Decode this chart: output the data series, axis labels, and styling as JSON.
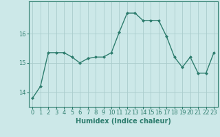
{
  "x": [
    0,
    1,
    2,
    3,
    4,
    5,
    6,
    7,
    8,
    9,
    10,
    11,
    12,
    13,
    14,
    15,
    16,
    17,
    18,
    19,
    20,
    21,
    22,
    23
  ],
  "y": [
    13.8,
    14.2,
    15.35,
    15.35,
    15.35,
    15.2,
    15.0,
    15.15,
    15.2,
    15.2,
    15.35,
    16.05,
    16.7,
    16.7,
    16.45,
    16.45,
    16.45,
    15.9,
    15.2,
    14.85,
    15.2,
    14.65,
    14.65,
    15.35
  ],
  "line_color": "#2e7d6e",
  "marker": "D",
  "markersize": 2,
  "linewidth": 1.0,
  "xlabel": "Humidex (Indice chaleur)",
  "yticks": [
    14,
    15,
    16
  ],
  "ylim": [
    13.5,
    17.1
  ],
  "xlim": [
    -0.5,
    23.5
  ],
  "bg_color": "#cce8e8",
  "grid_color": "#aacccc",
  "tick_fontsize": 6,
  "xlabel_fontsize": 7
}
